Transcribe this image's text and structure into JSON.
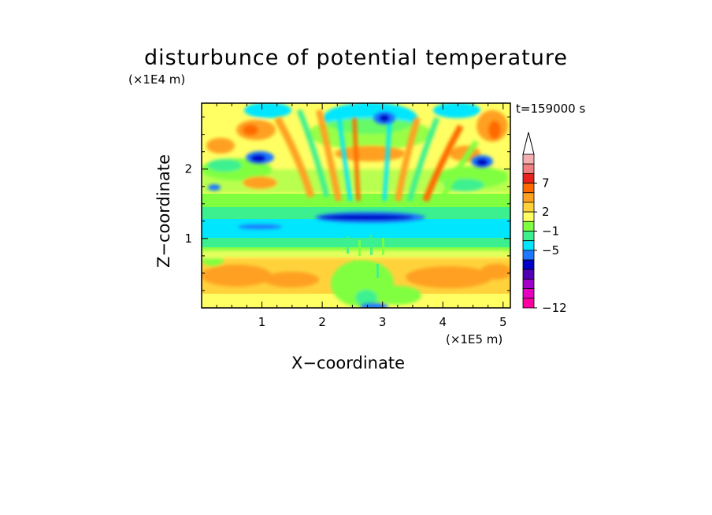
{
  "chart_data": {
    "type": "heatmap",
    "title": "disturbunce of potential temperature",
    "xlabel": "X−coordinate",
    "ylabel": "Z−coordinate",
    "x_unit": "(×1E5 m)",
    "y_unit": "(×1E4 m)",
    "time_label": "t=159000 s",
    "xlim": [
      0,
      5.12
    ],
    "ylim": [
      0,
      2.95
    ],
    "x_ticks": [
      1,
      2,
      3,
      4,
      5
    ],
    "y_ticks": [
      1,
      2
    ],
    "colorbar": {
      "levels_printed": [
        "7",
        "2",
        "−1",
        "−5",
        "−12"
      ],
      "level_values": [
        7,
        2,
        -1,
        -5,
        -12
      ],
      "colors_top_to_bottom": [
        "#ffffff",
        "#f4b0b0",
        "#f08080",
        "#e8231f",
        "#ff6a00",
        "#ffa020",
        "#ffd23c",
        "#ffff64",
        "#80ff40",
        "#3cf090",
        "#00e6ff",
        "#1e78ff",
        "#0000c8",
        "#5000b4",
        "#a000c8",
        "#e600c0",
        "#ff00a0"
      ]
    },
    "features": [
      {
        "region": "lower layer",
        "z_range": [
          0,
          0.9
        ],
        "value_class": "positive 2 to 5 (yellow/orange bands)"
      },
      {
        "region": "mid band",
        "z_range": [
          0.9,
          1.35
        ],
        "value_class": "around -1 (cyan)"
      },
      {
        "region": "dark blue streak",
        "x_range": [
          1.8,
          3.6
        ],
        "z_range": [
          1.25,
          1.4
        ],
        "value_class": "around -5"
      },
      {
        "region": "upper fan of waves",
        "x_range": [
          1.5,
          4.5
        ],
        "z_range": [
          1.4,
          2.95
        ],
        "value_class": "alternating -5 to 7"
      }
    ]
  }
}
